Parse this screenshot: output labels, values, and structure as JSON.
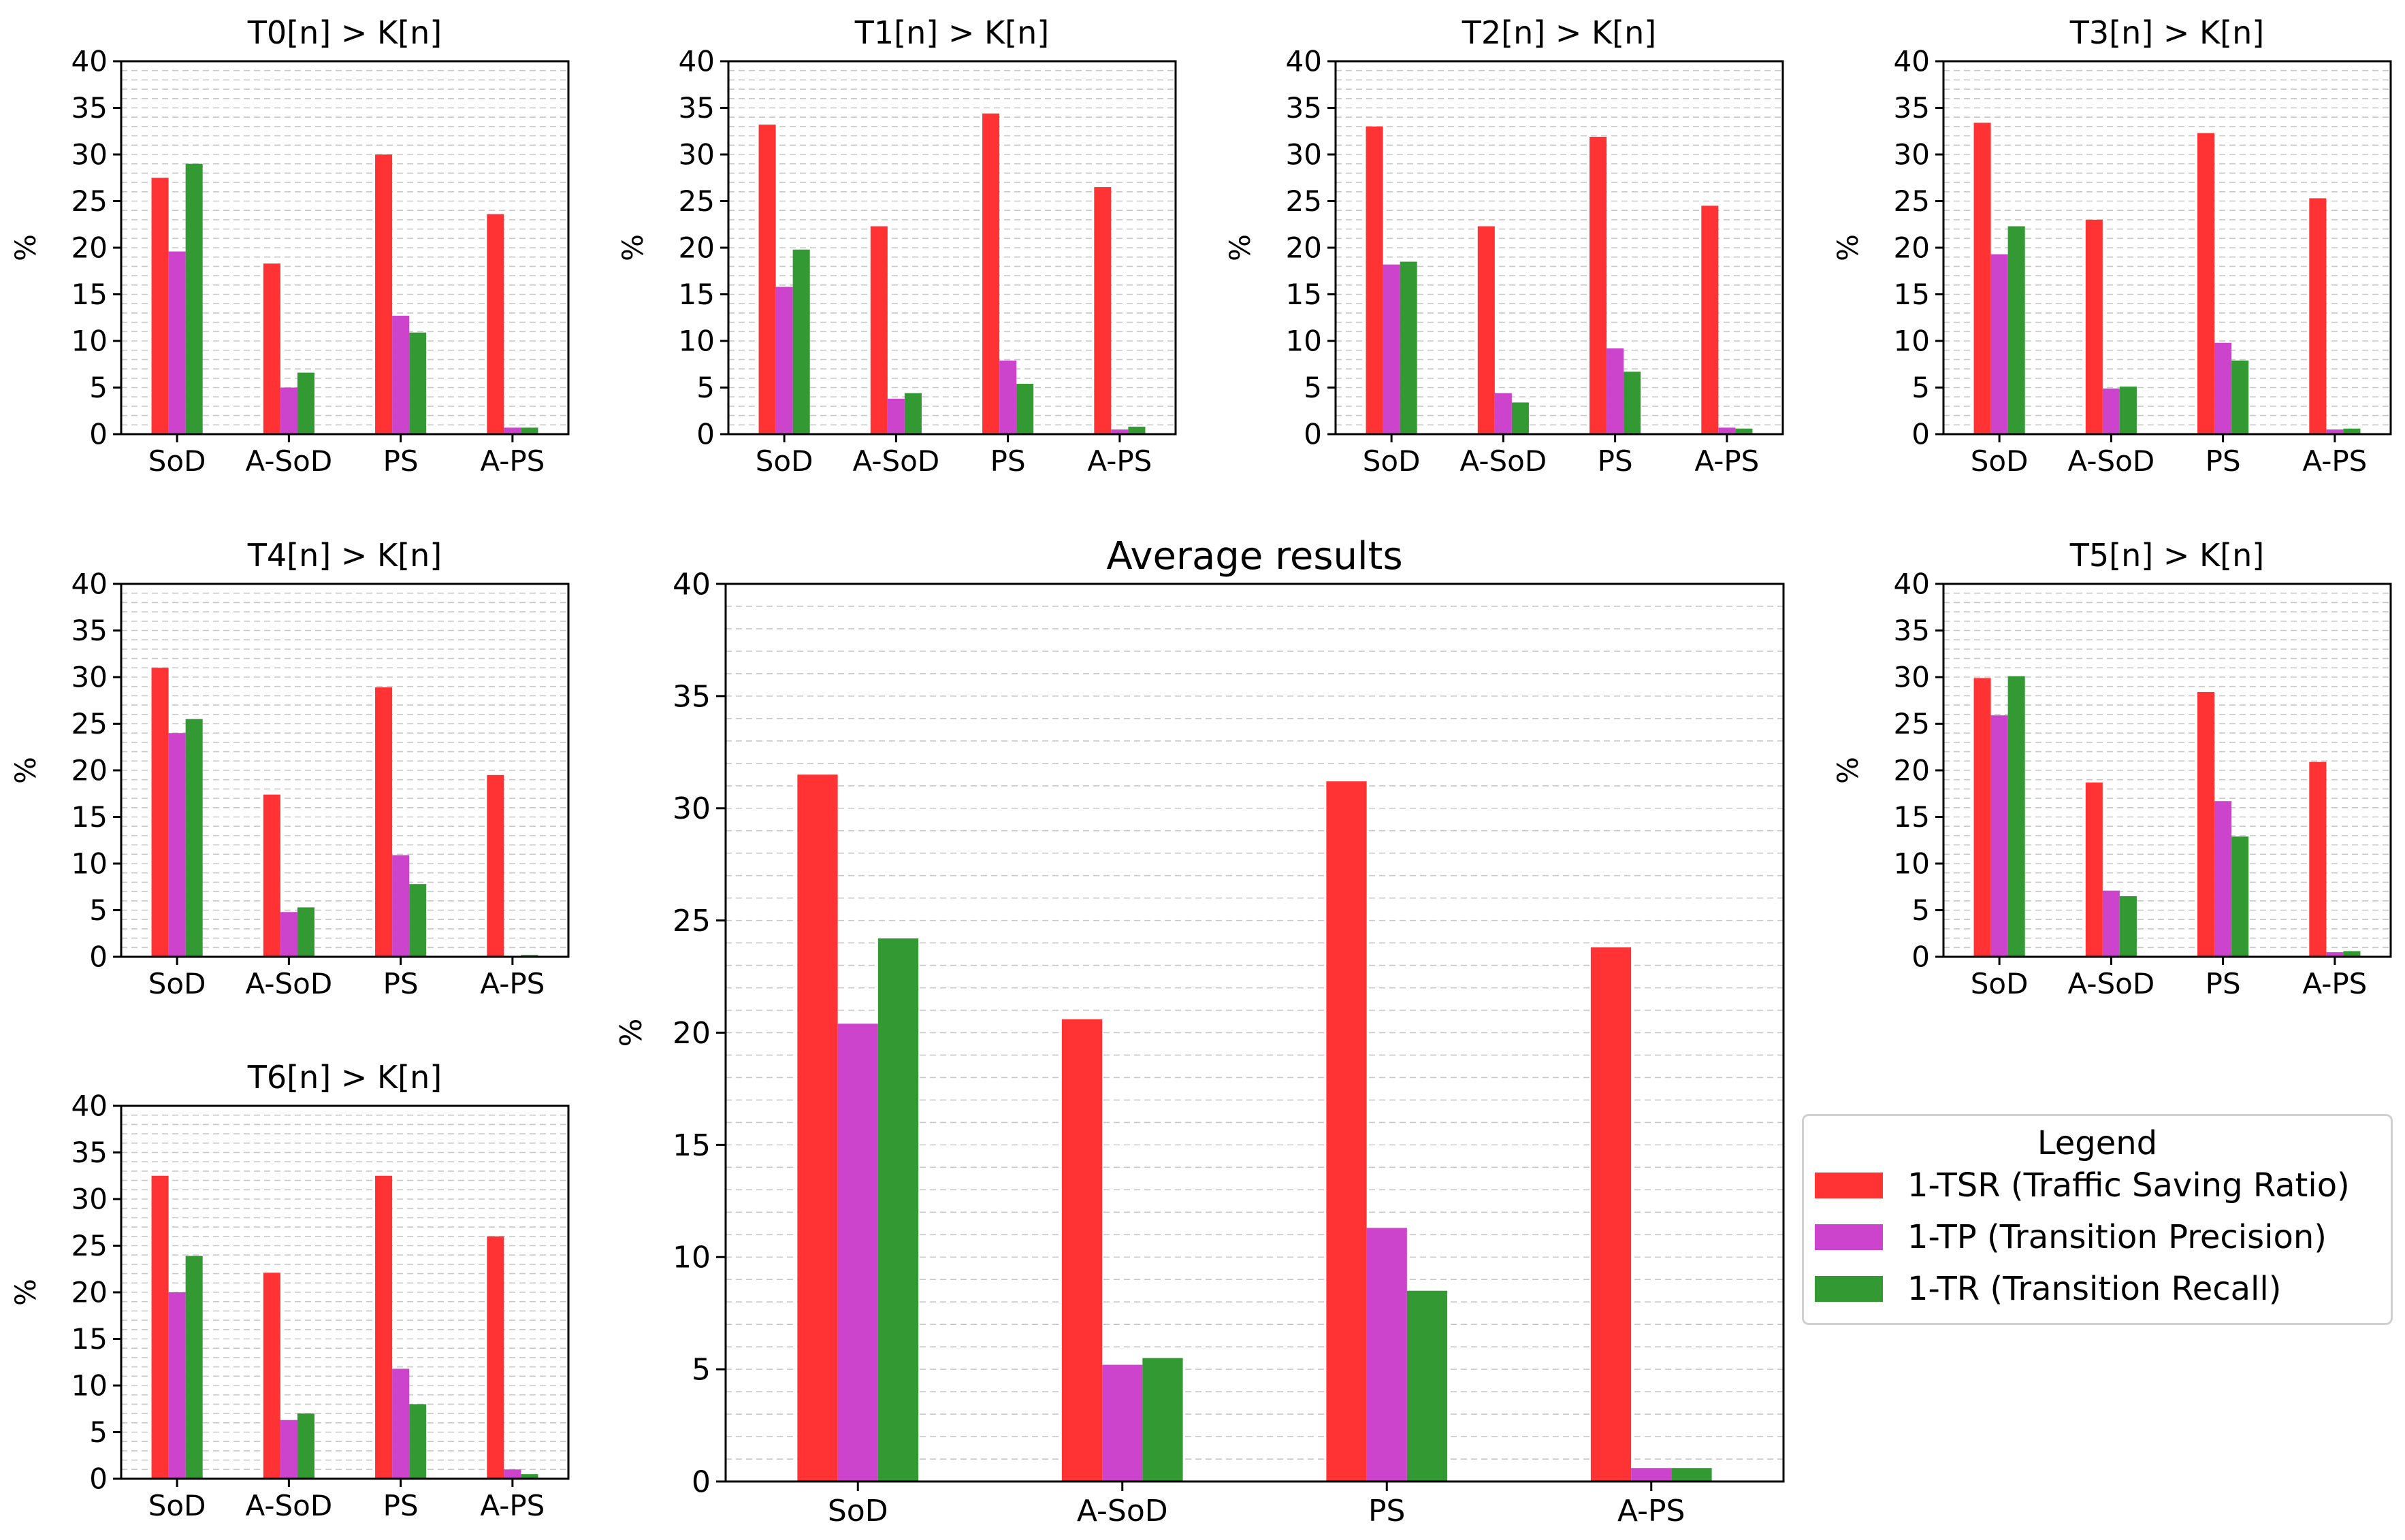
{
  "colors": {
    "tsr": "#ff3333",
    "tp": "#cc44cc",
    "tr": "#339933"
  },
  "legend": {
    "title": "Legend",
    "items": [
      {
        "label": "1-TSR (Traffic Saving Ratio)",
        "color": "#ff3333"
      },
      {
        "label": "1-TP (Transition Precision)",
        "color": "#cc44cc"
      },
      {
        "label": "1-TR (Transition Recall)",
        "color": "#339933"
      }
    ]
  },
  "chart_data": [
    {
      "id": "t0",
      "type": "bar",
      "title": "T0[n] > K[n]",
      "ylabel": "%",
      "ylim": [
        0,
        40
      ],
      "yticks": [
        0,
        5,
        10,
        15,
        20,
        25,
        30,
        35,
        40
      ],
      "categories": [
        "SoD",
        "A-SoD",
        "PS",
        "A-PS"
      ],
      "series": [
        {
          "name": "1-TSR (Traffic Saving Ratio)",
          "values": [
            27.5,
            18.3,
            30.0,
            23.6
          ]
        },
        {
          "name": "1-TP (Transition Precision)",
          "values": [
            19.6,
            5.0,
            12.7,
            0.7
          ]
        },
        {
          "name": "1-TR (Transition Recall)",
          "values": [
            29.0,
            6.6,
            10.9,
            0.7
          ]
        }
      ]
    },
    {
      "id": "t1",
      "type": "bar",
      "title": "T1[n] > K[n]",
      "ylabel": "%",
      "ylim": [
        0,
        40
      ],
      "yticks": [
        0,
        5,
        10,
        15,
        20,
        25,
        30,
        35,
        40
      ],
      "categories": [
        "SoD",
        "A-SoD",
        "PS",
        "A-PS"
      ],
      "series": [
        {
          "name": "1-TSR (Traffic Saving Ratio)",
          "values": [
            33.2,
            22.3,
            34.4,
            26.5
          ]
        },
        {
          "name": "1-TP (Transition Precision)",
          "values": [
            15.8,
            3.8,
            7.9,
            0.5
          ]
        },
        {
          "name": "1-TR (Transition Recall)",
          "values": [
            19.8,
            4.4,
            5.4,
            0.8
          ]
        }
      ]
    },
    {
      "id": "t2",
      "type": "bar",
      "title": "T2[n] > K[n]",
      "ylabel": "%",
      "ylim": [
        0,
        40
      ],
      "yticks": [
        0,
        5,
        10,
        15,
        20,
        25,
        30,
        35,
        40
      ],
      "categories": [
        "SoD",
        "A-SoD",
        "PS",
        "A-PS"
      ],
      "series": [
        {
          "name": "1-TSR (Traffic Saving Ratio)",
          "values": [
            33.0,
            22.3,
            31.9,
            24.5
          ]
        },
        {
          "name": "1-TP (Transition Precision)",
          "values": [
            18.2,
            4.4,
            9.2,
            0.7
          ]
        },
        {
          "name": "1-TR (Transition Recall)",
          "values": [
            18.5,
            3.4,
            6.7,
            0.6
          ]
        }
      ]
    },
    {
      "id": "t3",
      "type": "bar",
      "title": "T3[n] > K[n]",
      "ylabel": "%",
      "ylim": [
        0,
        40
      ],
      "yticks": [
        0,
        5,
        10,
        15,
        20,
        25,
        30,
        35,
        40
      ],
      "categories": [
        "SoD",
        "A-SoD",
        "PS",
        "A-PS"
      ],
      "series": [
        {
          "name": "1-TSR (Traffic Saving Ratio)",
          "values": [
            33.4,
            23.0,
            32.3,
            25.3
          ]
        },
        {
          "name": "1-TP (Transition Precision)",
          "values": [
            19.3,
            4.9,
            9.8,
            0.5
          ]
        },
        {
          "name": "1-TR (Transition Recall)",
          "values": [
            22.3,
            5.1,
            7.9,
            0.6
          ]
        }
      ]
    },
    {
      "id": "t4",
      "type": "bar",
      "title": "T4[n] > K[n]",
      "ylabel": "%",
      "ylim": [
        0,
        40
      ],
      "yticks": [
        0,
        5,
        10,
        15,
        20,
        25,
        30,
        35,
        40
      ],
      "categories": [
        "SoD",
        "A-SoD",
        "PS",
        "A-PS"
      ],
      "series": [
        {
          "name": "1-TSR (Traffic Saving Ratio)",
          "values": [
            31.0,
            17.4,
            28.9,
            19.5
          ]
        },
        {
          "name": "1-TP (Transition Precision)",
          "values": [
            24.0,
            4.8,
            10.9,
            0.1
          ]
        },
        {
          "name": "1-TR (Transition Recall)",
          "values": [
            25.5,
            5.3,
            7.8,
            0.2
          ]
        }
      ]
    },
    {
      "id": "t5",
      "type": "bar",
      "title": "T5[n] > K[n]",
      "ylabel": "%",
      "ylim": [
        0,
        40
      ],
      "yticks": [
        0,
        5,
        10,
        15,
        20,
        25,
        30,
        35,
        40
      ],
      "categories": [
        "SoD",
        "A-SoD",
        "PS",
        "A-PS"
      ],
      "series": [
        {
          "name": "1-TSR (Traffic Saving Ratio)",
          "values": [
            29.9,
            18.7,
            28.4,
            20.9
          ]
        },
        {
          "name": "1-TP (Transition Precision)",
          "values": [
            25.9,
            7.1,
            16.7,
            0.5
          ]
        },
        {
          "name": "1-TR (Transition Recall)",
          "values": [
            30.1,
            6.5,
            12.9,
            0.6
          ]
        }
      ]
    },
    {
      "id": "t6",
      "type": "bar",
      "title": "T6[n] > K[n]",
      "ylabel": "%",
      "ylim": [
        0,
        40
      ],
      "yticks": [
        0,
        5,
        10,
        15,
        20,
        25,
        30,
        35,
        40
      ],
      "categories": [
        "SoD",
        "A-SoD",
        "PS",
        "A-PS"
      ],
      "series": [
        {
          "name": "1-TSR (Traffic Saving Ratio)",
          "values": [
            32.5,
            22.1,
            32.5,
            26.0
          ]
        },
        {
          "name": "1-TP (Transition Precision)",
          "values": [
            20.0,
            6.3,
            11.8,
            1.0
          ]
        },
        {
          "name": "1-TR (Transition Recall)",
          "values": [
            23.9,
            7.0,
            8.0,
            0.5
          ]
        }
      ]
    },
    {
      "id": "avg",
      "type": "bar",
      "title": "Average results",
      "ylabel": "%",
      "ylim": [
        0,
        40
      ],
      "yticks": [
        0,
        5,
        10,
        15,
        20,
        25,
        30,
        35,
        40
      ],
      "categories": [
        "SoD",
        "A-SoD",
        "PS",
        "A-PS"
      ],
      "series": [
        {
          "name": "1-TSR (Traffic Saving Ratio)",
          "values": [
            31.5,
            20.6,
            31.2,
            23.8
          ]
        },
        {
          "name": "1-TP (Transition Precision)",
          "values": [
            20.4,
            5.2,
            11.3,
            0.6
          ]
        },
        {
          "name": "1-TR (Transition Recall)",
          "values": [
            24.2,
            5.5,
            8.5,
            0.6
          ]
        }
      ]
    }
  ]
}
